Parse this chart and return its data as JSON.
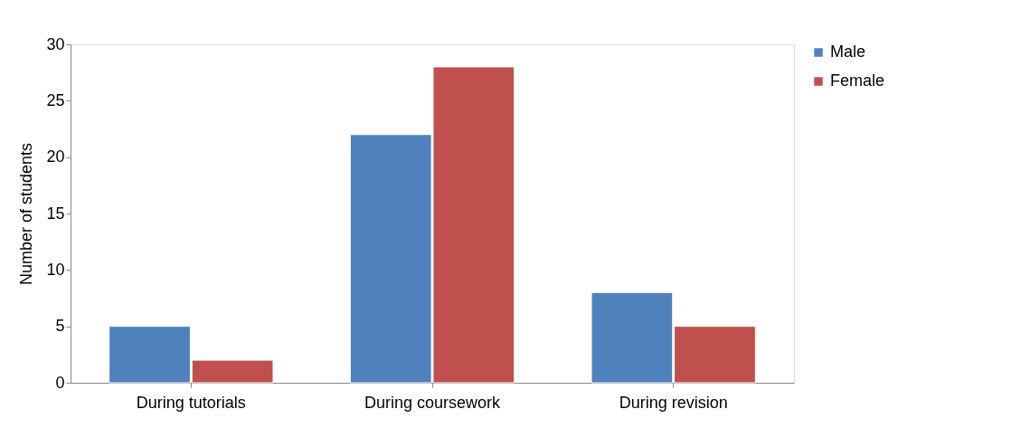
{
  "chart_data": {
    "type": "bar",
    "ylabel": "Number of students",
    "categories": [
      "During tutorials",
      "During coursework",
      "During revision"
    ],
    "series": [
      {
        "name": "Male",
        "color": "#4f81bd",
        "values": [
          5,
          22,
          8
        ]
      },
      {
        "name": "Female",
        "color": "#c0504d",
        "values": [
          2,
          28,
          5
        ]
      }
    ],
    "ylim": [
      0,
      30
    ],
    "yticks": [
      0,
      5,
      10,
      15,
      20,
      25,
      30
    ],
    "grid": false,
    "legend": "right"
  }
}
